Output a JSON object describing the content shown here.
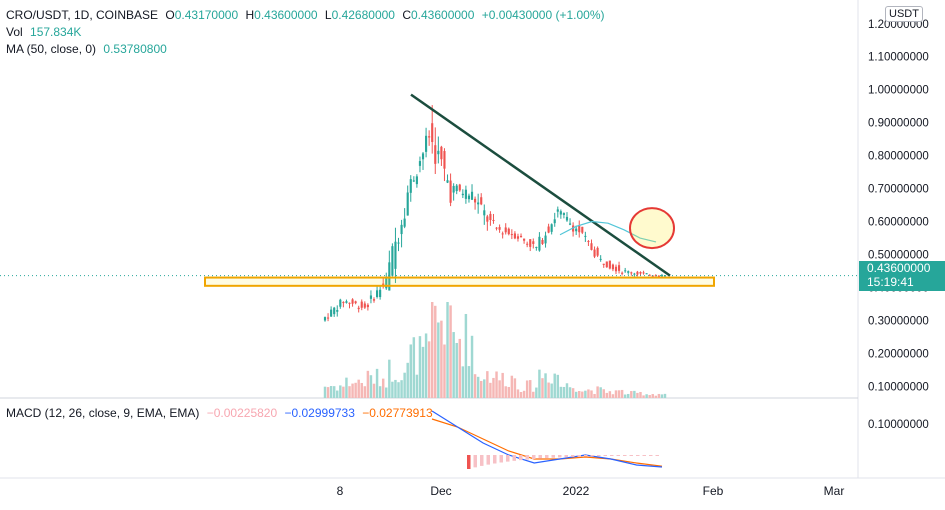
{
  "header": {
    "symbol": "CRO/USDT, 1D, COINBASE",
    "open_label": "O",
    "open": "0.43170000",
    "high_label": "H",
    "high": "0.43600000",
    "low_label": "L",
    "low": "0.42680000",
    "close_label": "C",
    "close": "0.43600000",
    "change": "+0.00430000 (+1.00%)",
    "vol_label": "Vol",
    "vol": "157.834K",
    "ma_label": "MA (50, close, 0)",
    "ma": "0.53780800",
    "macd_label": "MACD (12, 26, close, 9, EMA, EMA)",
    "macd_hist": "−0.00225820",
    "macd_line": "−0.02999733",
    "macd_signal": "−0.02773913"
  },
  "currency_button": "USDT",
  "last_price": "0.43600000",
  "countdown": "15:19:41",
  "colors": {
    "up": "#26a69a",
    "down": "#ef5350",
    "ma": "#53c6d8",
    "macd": "#2962ff",
    "signal": "#ff6d00",
    "trendline": "#1b4d3e",
    "support": "#f0a500",
    "circle": "#e53935"
  },
  "chart_data": [
    {
      "type": "candlestick",
      "title": "CRO/USDT, 1D, COINBASE",
      "y_axis_ticks": [
        "0.10000000",
        "0.20000000",
        "0.30000000",
        "0.40000000",
        "0.50000000",
        "0.60000000",
        "0.70000000",
        "0.80000000",
        "0.90000000",
        "1.00000000",
        "1.10000000",
        "1.20000000"
      ],
      "x_axis_ticks": [
        "8",
        "Dec",
        "2022",
        "Feb",
        "Mar"
      ],
      "ylim": [
        0.05,
        1.22
      ],
      "current_price": 0.436,
      "series": [
        {
          "name": "CRO/USDT",
          "ohlc_weekly_approx": [
            [
              0.3,
              0.38,
              0.28,
              0.36
            ],
            [
              0.36,
              0.41,
              0.31,
              0.34
            ],
            [
              0.34,
              0.45,
              0.33,
              0.42
            ],
            [
              0.42,
              0.74,
              0.4,
              0.69
            ],
            [
              0.69,
              0.9,
              0.66,
              0.86
            ],
            [
              0.86,
              0.99,
              0.62,
              0.7
            ],
            [
              0.7,
              0.82,
              0.64,
              0.68
            ],
            [
              0.68,
              0.72,
              0.52,
              0.58
            ],
            [
              0.58,
              0.63,
              0.53,
              0.56
            ],
            [
              0.56,
              0.6,
              0.5,
              0.52
            ],
            [
              0.52,
              0.66,
              0.5,
              0.63
            ],
            [
              0.63,
              0.69,
              0.55,
              0.57
            ],
            [
              0.57,
              0.58,
              0.46,
              0.48
            ],
            [
              0.48,
              0.51,
              0.43,
              0.45
            ],
            [
              0.45,
              0.48,
              0.43,
              0.44
            ],
            [
              0.44,
              0.46,
              0.43,
              0.436
            ]
          ]
        },
        {
          "name": "MA (50, close, 0)",
          "values": [
            0.56,
            0.585,
            0.6,
            0.595,
            0.575,
            0.55,
            0.538
          ]
        }
      ],
      "volume_relative": [
        0.15,
        0.2,
        0.25,
        0.35,
        0.55,
        1.0,
        0.75,
        0.3,
        0.25,
        0.15,
        0.3,
        0.15,
        0.1,
        0.08,
        0.06,
        0.05
      ],
      "annotations": {
        "trendline": {
          "from": 0.985,
          "to": 0.436
        },
        "support_zone": [
          0.405,
          0.43
        ],
        "circle_around_ma": 0.58
      }
    },
    {
      "type": "line",
      "title": "MACD (12, 26, close, 9, EMA, EMA)",
      "y_axis_ticks": [
        "0.10000000"
      ],
      "series": [
        {
          "name": "MACD",
          "values": [
            0.11,
            0.07,
            0.03,
            0.0,
            -0.02,
            -0.01,
            0.0,
            -0.01,
            -0.025,
            -0.03
          ]
        },
        {
          "name": "Signal",
          "values": [
            0.09,
            0.07,
            0.04,
            0.01,
            -0.01,
            -0.01,
            -0.005,
            -0.01,
            -0.02,
            -0.028
          ]
        }
      ]
    }
  ]
}
